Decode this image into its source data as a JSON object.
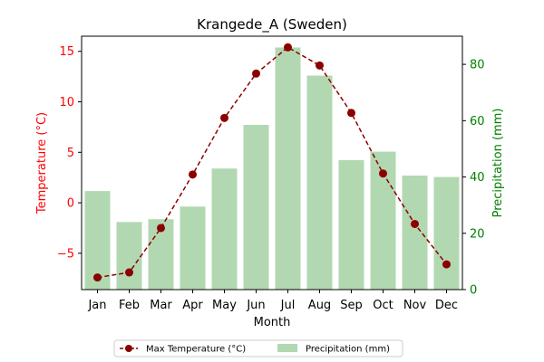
{
  "chart_data": {
    "type": "bar+line",
    "title": "Krangede_A (Sweden)",
    "xlabel": "Month",
    "categories": [
      "Jan",
      "Feb",
      "Mar",
      "Apr",
      "May",
      "Jun",
      "Jul",
      "Aug",
      "Sep",
      "Oct",
      "Nov",
      "Dec"
    ],
    "series": [
      {
        "name": "Max Temperature (°C)",
        "type": "line",
        "axis": "left",
        "color": "#8b0000",
        "values": [
          -7.4,
          -6.9,
          -2.5,
          2.8,
          8.4,
          12.8,
          15.4,
          13.6,
          8.9,
          2.9,
          -2.1,
          -6.1
        ]
      },
      {
        "name": "Precipitation (mm)",
        "type": "bar",
        "axis": "right",
        "color": "#b2d8b2",
        "values": [
          35,
          24,
          25,
          29.5,
          43,
          58.5,
          86,
          76,
          46,
          49,
          40.5,
          40
        ]
      }
    ],
    "y_left": {
      "label": "Temperature (°C)",
      "color": "#ff0000",
      "range": [
        -8.6,
        16.5
      ],
      "ticks": [
        -5,
        0,
        5,
        10,
        15
      ]
    },
    "y_right": {
      "label": "Precipitation (mm)",
      "color": "#008000",
      "range": [
        0,
        90
      ],
      "ticks": [
        0,
        20,
        40,
        60,
        80
      ]
    },
    "legend_position": "bottom-center",
    "grid": false
  }
}
